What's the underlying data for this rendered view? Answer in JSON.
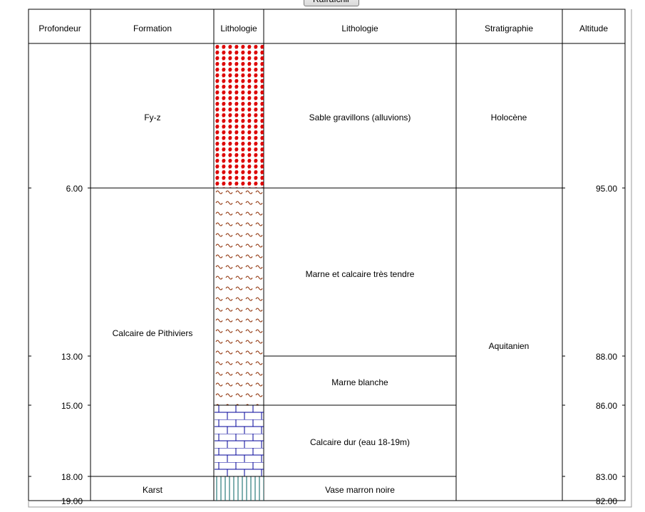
{
  "toolbar": {
    "refresh_label": "Rafraîchir"
  },
  "headers": [
    "Profondeur",
    "Formation",
    "Lithologie",
    "Lithologie",
    "Stratigraphie",
    "Altitude"
  ],
  "depth_labels": [
    "6.00",
    "13.00",
    "15.00",
    "18.00",
    "19.00"
  ],
  "altitude_labels": [
    "95.00",
    "88.00",
    "86.00",
    "83.00",
    "82.00"
  ],
  "log": {
    "total_depth": 19,
    "formations": [
      {
        "name": "Fy-z",
        "top": 0,
        "bottom": 6
      },
      {
        "name": "Calcaire de Pithiviers",
        "top": 6,
        "bottom": 18
      },
      {
        "name": "Karst",
        "top": 18,
        "bottom": 19
      }
    ],
    "lithology": [
      {
        "description": "Sable gravillons (alluvions)",
        "top": 0,
        "bottom": 6,
        "pattern": "gravel",
        "color": "#dd0000"
      },
      {
        "description": "Marne et calcaire très tendre",
        "top": 6,
        "bottom": 13,
        "pattern": "marl",
        "color": "#8b2a00"
      },
      {
        "description": "Marne blanche",
        "top": 13,
        "bottom": 15,
        "pattern": "marl",
        "color": "#8b2a00"
      },
      {
        "description": "Calcaire dur (eau 18-19m)",
        "top": 15,
        "bottom": 18,
        "pattern": "limestone",
        "color": "#000099"
      },
      {
        "description": "Vase marron noire",
        "top": 18,
        "bottom": 19,
        "pattern": "mud",
        "color": "#006060"
      }
    ],
    "stratigraphy": [
      {
        "name": "Holocène",
        "top": 0,
        "bottom": 6
      },
      {
        "name": "Aquitanien",
        "top": 6,
        "bottom": 19
      }
    ]
  }
}
